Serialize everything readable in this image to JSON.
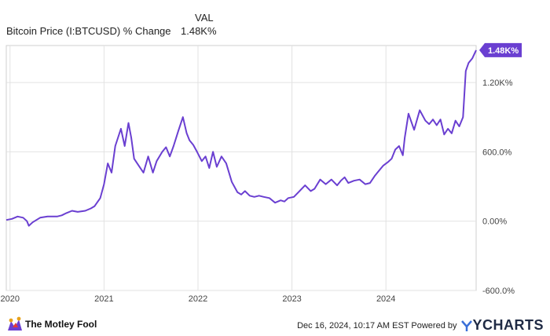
{
  "header": {
    "val_label": "VAL",
    "series_label": "Bitcoin Price (I:BTCUSD) % Change",
    "series_value": "1.48K%"
  },
  "footer": {
    "brand": "The Motley Fool",
    "timestamp": "Dec 16, 2024, 10:17 AM EST Powered by",
    "ycharts": "YCHARTS"
  },
  "chart_data": {
    "type": "line",
    "x_ticks": [
      "2020",
      "2021",
      "2022",
      "2023",
      "2024"
    ],
    "y_ticks": [
      "-600.0%",
      "0.00%",
      "600.0%",
      "1.20K%"
    ],
    "y_tick_values": [
      -600,
      0,
      600,
      1200
    ],
    "ylim": [
      -600,
      1520
    ],
    "xlim": [
      2019.96,
      2024.96
    ],
    "last_label": "1.48K%",
    "line_color": "#6a3fd1",
    "grid": true,
    "series": [
      {
        "x": [
          2019.96,
          2020.02,
          2020.08,
          2020.14,
          2020.18,
          2020.2,
          2020.24,
          2020.32,
          2020.4,
          2020.5,
          2020.55,
          2020.6,
          2020.66,
          2020.72,
          2020.8,
          2020.86,
          2020.9,
          2020.96,
          2021.0,
          2021.04,
          2021.08,
          2021.12,
          2021.18,
          2021.22,
          2021.26,
          2021.29,
          2021.32,
          2021.37,
          2021.42,
          2021.47,
          2021.52,
          2021.56,
          2021.62,
          2021.66,
          2021.7,
          2021.74,
          2021.79,
          2021.84,
          2021.88,
          2021.91,
          2021.95,
          2021.99,
          2022.04,
          2022.08,
          2022.12,
          2022.16,
          2022.2,
          2022.25,
          2022.3,
          2022.36,
          2022.42,
          2022.46,
          2022.5,
          2022.55,
          2022.6,
          2022.65,
          2022.7,
          2022.76,
          2022.82,
          2022.88,
          2022.92,
          2022.96,
          2023.02,
          2023.08,
          2023.14,
          2023.2,
          2023.24,
          2023.3,
          2023.36,
          2023.42,
          2023.48,
          2023.52,
          2023.56,
          2023.6,
          2023.66,
          2023.72,
          2023.78,
          2023.83,
          2023.88,
          2023.93,
          2023.97,
          2024.02,
          2024.06,
          2024.1,
          2024.14,
          2024.18,
          2024.2,
          2024.24,
          2024.3,
          2024.36,
          2024.42,
          2024.46,
          2024.5,
          2024.54,
          2024.58,
          2024.62,
          2024.66,
          2024.7,
          2024.74,
          2024.78,
          2024.82,
          2024.85,
          2024.88,
          2024.92,
          2024.96
        ],
        "y": [
          10,
          20,
          40,
          30,
          0,
          -40,
          -10,
          30,
          40,
          40,
          50,
          70,
          90,
          80,
          90,
          110,
          130,
          200,
          320,
          500,
          420,
          650,
          800,
          650,
          850,
          720,
          540,
          480,
          420,
          560,
          420,
          520,
          600,
          640,
          560,
          650,
          780,
          900,
          760,
          700,
          660,
          600,
          520,
          560,
          460,
          600,
          470,
          560,
          500,
          340,
          250,
          230,
          260,
          220,
          210,
          220,
          210,
          200,
          160,
          180,
          170,
          200,
          210,
          260,
          310,
          260,
          280,
          360,
          320,
          360,
          310,
          350,
          380,
          330,
          350,
          360,
          320,
          330,
          390,
          440,
          480,
          510,
          540,
          620,
          650,
          570,
          720,
          930,
          790,
          960,
          870,
          840,
          880,
          830,
          880,
          750,
          800,
          760,
          870,
          820,
          900,
          1300,
          1370,
          1410,
          1480
        ]
      }
    ]
  }
}
